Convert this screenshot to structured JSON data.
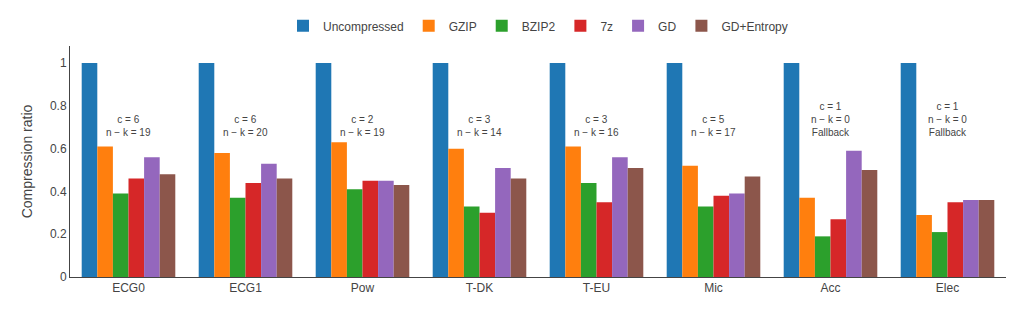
{
  "chart_data": {
    "type": "bar",
    "categories": [
      "ECG0",
      "ECG1",
      "Pow",
      "T-DK",
      "T-EU",
      "Mic",
      "Acc",
      "Elec"
    ],
    "series": [
      {
        "name": "Uncompressed",
        "values": [
          1.0,
          1.0,
          1.0,
          1.0,
          1.0,
          1.0,
          1.0,
          1.0
        ]
      },
      {
        "name": "GZIP",
        "values": [
          0.61,
          0.58,
          0.63,
          0.6,
          0.61,
          0.52,
          0.37,
          0.29
        ]
      },
      {
        "name": "BZIP2",
        "values": [
          0.39,
          0.37,
          0.41,
          0.33,
          0.44,
          0.33,
          0.19,
          0.21
        ]
      },
      {
        "name": "7z",
        "values": [
          0.46,
          0.44,
          0.45,
          0.3,
          0.35,
          0.38,
          0.27,
          0.35
        ]
      },
      {
        "name": "GD",
        "values": [
          0.56,
          0.53,
          0.45,
          0.51,
          0.56,
          0.39,
          0.59,
          0.36
        ]
      },
      {
        "name": "GD+Entropy",
        "values": [
          0.48,
          0.46,
          0.43,
          0.46,
          0.51,
          0.47,
          0.5,
          0.36
        ]
      }
    ],
    "annotations": [
      {
        "x": "ECG0",
        "text": [
          "c = 6",
          "n − k = 19"
        ]
      },
      {
        "x": "ECG1",
        "text": [
          "c = 6",
          "n − k = 20"
        ]
      },
      {
        "x": "Pow",
        "text": [
          "c = 2",
          "n − k = 19"
        ]
      },
      {
        "x": "T-DK",
        "text": [
          "c = 3",
          "n − k = 14"
        ]
      },
      {
        "x": "T-EU",
        "text": [
          "c = 3",
          "n − k = 16"
        ]
      },
      {
        "x": "Mic",
        "text": [
          "c = 5",
          "n − k = 17"
        ]
      },
      {
        "x": "Acc",
        "text": [
          "c = 1",
          "n − k = 0",
          "Fallback"
        ]
      },
      {
        "x": "Elec",
        "text": [
          "c = 1",
          "n − k = 0",
          "Fallback"
        ]
      }
    ],
    "ylabel": "Compression ratio",
    "ylim": [
      0.0,
      1.08
    ],
    "yticks": [
      0.0,
      0.2,
      0.4,
      0.6,
      0.8,
      1.0
    ],
    "grid": false,
    "legend": "top"
  }
}
